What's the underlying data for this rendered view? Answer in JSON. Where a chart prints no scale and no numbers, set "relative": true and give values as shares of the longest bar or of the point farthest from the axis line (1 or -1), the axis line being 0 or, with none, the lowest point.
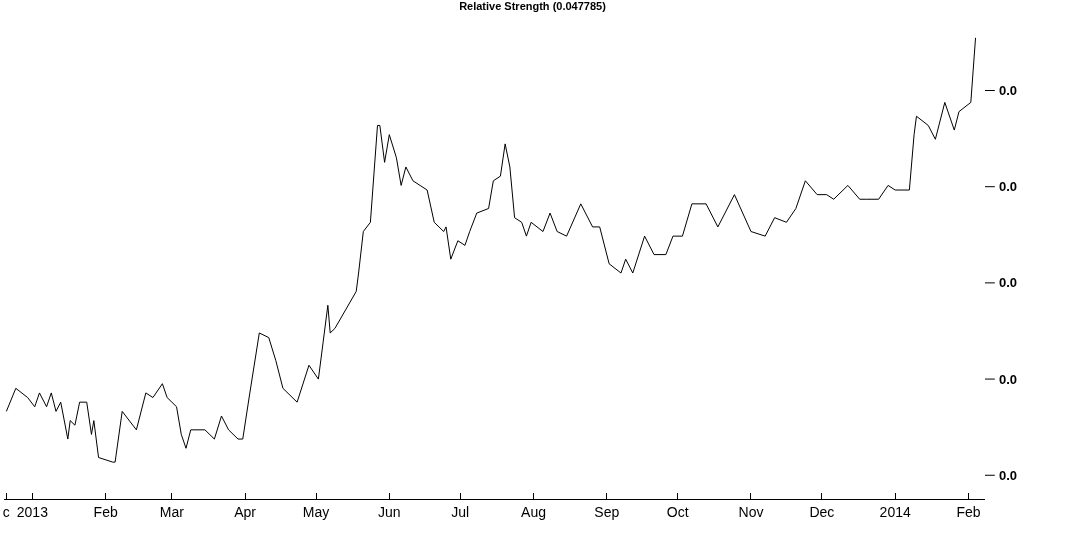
{
  "chart_data": {
    "type": "line",
    "title": "Relative Strength (0.047785)",
    "relative": true,
    "x": [
      "2012-12-21",
      "2012-12-25",
      "2012-12-30",
      "2013-01-02",
      "2013-01-04",
      "2013-01-07",
      "2013-01-09",
      "2013-01-11",
      "2013-01-13",
      "2013-01-16",
      "2013-01-17",
      "2013-01-19",
      "2013-01-21",
      "2013-01-24",
      "2013-01-26",
      "2013-01-27",
      "2013-01-29",
      "2013-02-04",
      "2013-02-05",
      "2013-02-08",
      "2013-02-14",
      "2013-02-18",
      "2013-02-21",
      "2013-02-25",
      "2013-02-27",
      "2013-03-03",
      "2013-03-05",
      "2013-03-07",
      "2013-03-09",
      "2013-03-15",
      "2013-03-19",
      "2013-03-22",
      "2013-03-25",
      "2013-03-29",
      "2013-03-31",
      "2013-04-03",
      "2013-04-07",
      "2013-04-11",
      "2013-04-14",
      "2013-04-17",
      "2013-04-23",
      "2013-04-28",
      "2013-05-02",
      "2013-05-04",
      "2013-05-06",
      "2013-05-07",
      "2013-05-09",
      "2013-05-18",
      "2013-05-19",
      "2013-05-21",
      "2013-05-24",
      "2013-05-25",
      "2013-05-27",
      "2013-05-28",
      "2013-05-30",
      "2013-06-01",
      "2013-06-04",
      "2013-06-06",
      "2013-06-08",
      "2013-06-11",
      "2013-06-14",
      "2013-06-17",
      "2013-06-20",
      "2013-06-24",
      "2013-06-25",
      "2013-06-27",
      "2013-06-30",
      "2013-07-03",
      "2013-07-05",
      "2013-07-08",
      "2013-07-13",
      "2013-07-15",
      "2013-07-18",
      "2013-07-20",
      "2013-07-22",
      "2013-07-24",
      "2013-07-27",
      "2013-07-29",
      "2013-07-31",
      "2013-08-05",
      "2013-08-08",
      "2013-08-11",
      "2013-08-15",
      "2013-08-21",
      "2013-08-26",
      "2013-08-29",
      "2013-09-02",
      "2013-09-07",
      "2013-09-09",
      "2013-09-12",
      "2013-09-17",
      "2013-09-21",
      "2013-09-26",
      "2013-09-29",
      "2013-10-03",
      "2013-10-07",
      "2013-10-13",
      "2013-10-18",
      "2013-10-25",
      "2013-11-01",
      "2013-11-07",
      "2013-11-11",
      "2013-11-16",
      "2013-11-20",
      "2013-11-24",
      "2013-11-29",
      "2013-12-03",
      "2013-12-06",
      "2013-12-12",
      "2013-12-17",
      "2013-12-20",
      "2013-12-25",
      "2013-12-29",
      "2014-01-01",
      "2014-01-07",
      "2014-01-09",
      "2014-01-10",
      "2014-01-15",
      "2014-01-18",
      "2014-01-22",
      "2014-01-26",
      "2014-01-28",
      "2014-02-02",
      "2014-02-03",
      "2014-02-04"
    ],
    "series": [
      {
        "color": "#000000",
        "values": [
          0.19,
          0.24,
          0.22,
          0.2,
          0.23,
          0.2,
          0.23,
          0.19,
          0.21,
          0.13,
          0.17,
          0.16,
          0.21,
          0.21,
          0.14,
          0.17,
          0.09,
          0.08,
          0.08,
          0.19,
          0.15,
          0.23,
          0.22,
          0.25,
          0.22,
          0.2,
          0.14,
          0.11,
          0.15,
          0.15,
          0.13,
          0.18,
          0.15,
          0.13,
          0.13,
          0.23,
          0.36,
          0.35,
          0.3,
          0.24,
          0.21,
          0.29,
          0.26,
          0.34,
          0.42,
          0.36,
          0.37,
          0.45,
          0.49,
          0.58,
          0.6,
          0.67,
          0.81,
          0.81,
          0.73,
          0.79,
          0.74,
          0.68,
          0.72,
          0.69,
          0.68,
          0.67,
          0.6,
          0.58,
          0.59,
          0.52,
          0.56,
          0.55,
          0.58,
          0.62,
          0.63,
          0.69,
          0.7,
          0.77,
          0.72,
          0.61,
          0.6,
          0.57,
          0.6,
          0.58,
          0.62,
          0.58,
          0.57,
          0.64,
          0.59,
          0.59,
          0.51,
          0.49,
          0.52,
          0.49,
          0.57,
          0.53,
          0.53,
          0.57,
          0.57,
          0.64,
          0.64,
          0.59,
          0.66,
          0.58,
          0.57,
          0.61,
          0.6,
          0.63,
          0.69,
          0.66,
          0.66,
          0.65,
          0.68,
          0.65,
          0.65,
          0.65,
          0.68,
          0.67,
          0.67,
          0.79,
          0.83,
          0.81,
          0.78,
          0.86,
          0.8,
          0.84,
          0.86,
          0.93,
          1
        ]
      }
    ],
    "xlim": [
      "2012-12-20",
      "2014-02-08"
    ],
    "xticks": [
      {
        "value": "2012-12-21",
        "label": "c"
      },
      {
        "value": "2013-01-01",
        "label": "2013"
      },
      {
        "value": "2013-02-01",
        "label": "Feb"
      },
      {
        "value": "2013-03-01",
        "label": "Mar"
      },
      {
        "value": "2013-04-01",
        "label": "Apr"
      },
      {
        "value": "2013-05-01",
        "label": "May"
      },
      {
        "value": "2013-06-01",
        "label": "Jun"
      },
      {
        "value": "2013-07-01",
        "label": "Jul"
      },
      {
        "value": "2013-08-01",
        "label": "Aug"
      },
      {
        "value": "2013-09-01",
        "label": "Sep"
      },
      {
        "value": "2013-10-01",
        "label": "Oct"
      },
      {
        "value": "2013-11-01",
        "label": "Nov"
      },
      {
        "value": "2013-12-01",
        "label": "Dec"
      },
      {
        "value": "2014-01-01",
        "label": "2014"
      },
      {
        "value": "2014-02-01",
        "label": "Feb"
      }
    ],
    "annotations": [
      "0.0",
      "0.0",
      "0.0",
      "0.0",
      "0.0"
    ],
    "marker": "none",
    "line_style": "solid"
  }
}
